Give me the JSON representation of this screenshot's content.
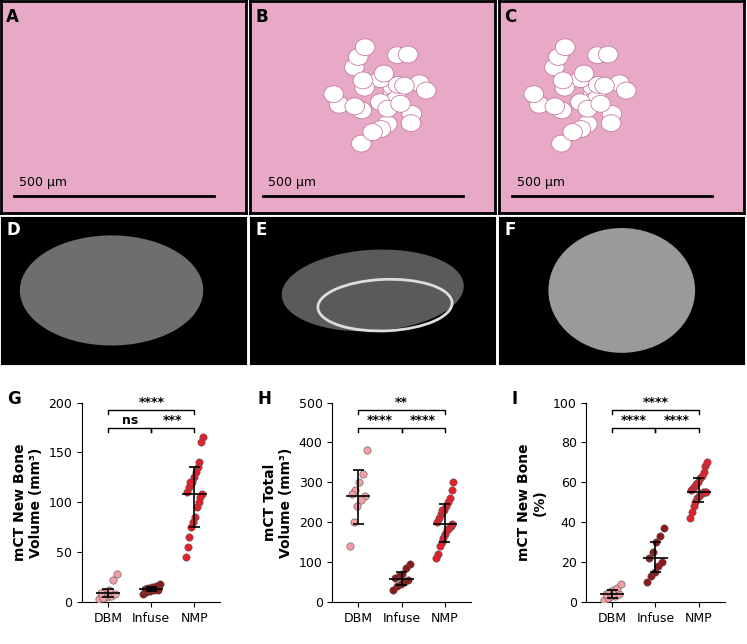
{
  "images": {
    "histology": [
      {
        "panel": "A",
        "scale_bar": "500 µm"
      },
      {
        "panel": "B",
        "scale_bar": "500 µm"
      },
      {
        "panel": "C",
        "scale_bar": "500 µm"
      }
    ],
    "micro_ct": [
      {
        "panel": "D"
      },
      {
        "panel": "E"
      },
      {
        "panel": "F"
      }
    ]
  },
  "chart_data": [
    {
      "type": "scatter",
      "panel": "G",
      "y_label": "mCT New Bone\nVolume (mm³)",
      "categories": [
        "DBM",
        "Infuse",
        "NMP"
      ],
      "colors": [
        "#f2a0a6",
        "#8b1a1a",
        "#e3202b"
      ],
      "ylim": [
        0,
        200
      ],
      "yticks": [
        0,
        50,
        100,
        150,
        200
      ],
      "points": [
        [
          3,
          5,
          6,
          8,
          10,
          12,
          4,
          9,
          22,
          28
        ],
        [
          8,
          10,
          11,
          12,
          13,
          14,
          15,
          16,
          18,
          12
        ],
        [
          165,
          160,
          140,
          135,
          130,
          125,
          120,
          115,
          110,
          108,
          105,
          100,
          95,
          85,
          80,
          75,
          65,
          55,
          45,
          120
        ]
      ],
      "center": [
        9,
        13,
        108
      ],
      "lower": [
        5,
        11,
        75
      ],
      "upper": [
        13,
        15,
        135
      ],
      "comparisons": [
        {
          "from": "DBM",
          "to": "Infuse",
          "label": "ns"
        },
        {
          "from": "Infuse",
          "to": "NMP",
          "label": "***"
        },
        {
          "from": "DBM",
          "to": "NMP",
          "label": "****"
        }
      ]
    },
    {
      "type": "scatter",
      "panel": "H",
      "y_label": "mCT Total\nVolume (mm³)",
      "categories": [
        "DBM",
        "Infuse",
        "NMP"
      ],
      "colors": [
        "#f2a0a6",
        "#8b1a1a",
        "#e3202b"
      ],
      "ylim": [
        0,
        500
      ],
      "yticks": [
        0,
        100,
        200,
        300,
        400,
        500
      ],
      "points": [
        [
          380,
          320,
          300,
          280,
          270,
          265,
          255,
          240,
          200,
          140
        ],
        [
          95,
          85,
          70,
          65,
          60,
          55,
          50,
          45,
          40,
          30
        ],
        [
          300,
          280,
          260,
          250,
          240,
          230,
          220,
          210,
          200,
          195,
          190,
          185,
          180,
          170,
          160,
          150,
          140,
          120,
          110,
          230
        ]
      ],
      "center": [
        265,
        57,
        195
      ],
      "lower": [
        195,
        42,
        150
      ],
      "upper": [
        332,
        75,
        245
      ],
      "comparisons": [
        {
          "from": "DBM",
          "to": "Infuse",
          "label": "****"
        },
        {
          "from": "Infuse",
          "to": "NMP",
          "label": "****"
        },
        {
          "from": "DBM",
          "to": "NMP",
          "label": "**"
        }
      ]
    },
    {
      "type": "scatter",
      "panel": "I",
      "y_label": "mCT New Bone\n(%)",
      "categories": [
        "DBM",
        "Infuse",
        "NMP"
      ],
      "colors": [
        "#f2a0a6",
        "#8b1a1a",
        "#e3202b"
      ],
      "ylim": [
        0,
        100
      ],
      "yticks": [
        0,
        20,
        40,
        60,
        80,
        100
      ],
      "points": [
        [
          1,
          2,
          3,
          3,
          4,
          4,
          5,
          6,
          7,
          9
        ],
        [
          10,
          13,
          15,
          18,
          20,
          22,
          25,
          30,
          33,
          37
        ],
        [
          42,
          45,
          48,
          50,
          52,
          53,
          54,
          55,
          55,
          56,
          57,
          58,
          59,
          60,
          62,
          63,
          65,
          68,
          70,
          55
        ]
      ],
      "center": [
        4,
        22,
        55
      ],
      "lower": [
        2,
        15,
        50
      ],
      "upper": [
        6,
        30,
        62
      ],
      "comparisons": [
        {
          "from": "DBM",
          "to": "Infuse",
          "label": "****"
        },
        {
          "from": "Infuse",
          "to": "NMP",
          "label": "****"
        },
        {
          "from": "DBM",
          "to": "NMP",
          "label": "****"
        }
      ]
    }
  ]
}
